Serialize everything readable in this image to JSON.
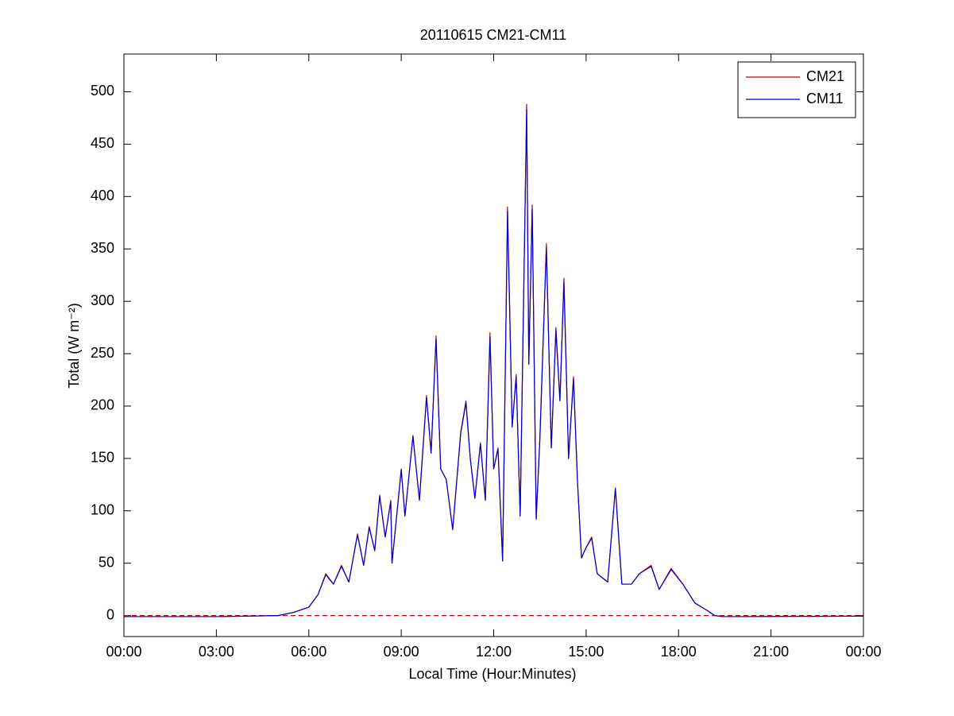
{
  "chart_data": {
    "type": "line",
    "title": "20110615 CM21-CM11",
    "x_label": "Local Time (Hour:Minutes)",
    "y_label": "Total (W m⁻²)",
    "x": [
      0,
      3,
      4,
      5,
      5.5,
      6,
      6.3,
      6.55,
      6.8,
      7.06,
      7.3,
      7.58,
      7.78,
      7.96,
      8.14,
      8.3,
      8.48,
      8.66,
      8.7,
      9.0,
      9.12,
      9.38,
      9.59,
      9.82,
      9.97,
      10.13,
      10.28,
      10.46,
      10.67,
      10.93,
      11.1,
      11.24,
      11.39,
      11.57,
      11.73,
      11.88,
      12.0,
      12.14,
      12.29,
      12.45,
      12.6,
      12.73,
      12.86,
      13.07,
      13.14,
      13.25,
      13.38,
      13.5,
      13.71,
      13.87,
      14.02,
      14.15,
      14.28,
      14.43,
      14.59,
      14.72,
      14.85,
      15.0,
      15.18,
      15.36,
      15.7,
      15.95,
      16.16,
      16.47,
      16.73,
      17.11,
      17.37,
      17.76,
      18.14,
      18.53,
      18.92,
      19.18,
      19.43,
      19.95,
      24
    ],
    "series": [
      {
        "name": "CM21",
        "color": "#cc0000",
        "values": [
          -1,
          -1,
          -0.5,
          0,
          3,
          8,
          20,
          40,
          30,
          48,
          32,
          78,
          48,
          85,
          62,
          115,
          75,
          110,
          50,
          140,
          95,
          172,
          110,
          210,
          155,
          267,
          140,
          130,
          82,
          175,
          205,
          150,
          112,
          165,
          110,
          270,
          140,
          160,
          52,
          390,
          180,
          230,
          95,
          488,
          240,
          392,
          92,
          170,
          355,
          160,
          275,
          205,
          322,
          150,
          228,
          128,
          55,
          65,
          75,
          40,
          32,
          122,
          30,
          30,
          40,
          48,
          25,
          45,
          30,
          12,
          5,
          0,
          -1,
          -1,
          -0.5
        ]
      },
      {
        "name": "CM11",
        "color": "#0000cc",
        "values": [
          -1,
          -1,
          -0.5,
          0,
          3,
          8,
          20,
          39,
          30,
          47,
          32,
          77,
          48,
          84,
          62,
          114,
          75,
          109,
          50,
          139,
          95,
          171,
          110,
          208,
          155,
          264,
          140,
          130,
          82,
          174,
          203,
          150,
          112,
          164,
          110,
          266,
          140,
          159,
          52,
          386,
          180,
          228,
          95,
          483,
          240,
          388,
          92,
          169,
          351,
          160,
          272,
          205,
          318,
          150,
          226,
          128,
          55,
          65,
          74,
          40,
          32,
          121,
          30,
          30,
          40,
          47,
          25,
          44,
          30,
          12,
          5,
          0,
          -1,
          -1,
          -0.5
        ]
      }
    ],
    "reference_line": {
      "value": 0,
      "color": "#cc0000",
      "style": "dashed"
    },
    "xlim": [
      0,
      24
    ],
    "xticks": [
      {
        "value": 0,
        "label": "00:00"
      },
      {
        "value": 3,
        "label": "03:00"
      },
      {
        "value": 6,
        "label": "06:00"
      },
      {
        "value": 9,
        "label": "09:00"
      },
      {
        "value": 12,
        "label": "12:00"
      },
      {
        "value": 15,
        "label": "15:00"
      },
      {
        "value": 18,
        "label": "18:00"
      },
      {
        "value": 21,
        "label": "21:00"
      },
      {
        "value": 24,
        "label": "00:00"
      }
    ],
    "ylim": [
      -20,
      536
    ],
    "yticks": [
      0,
      50,
      100,
      150,
      200,
      250,
      300,
      350,
      400,
      450,
      500
    ],
    "grid": false,
    "legend": "top-right"
  }
}
